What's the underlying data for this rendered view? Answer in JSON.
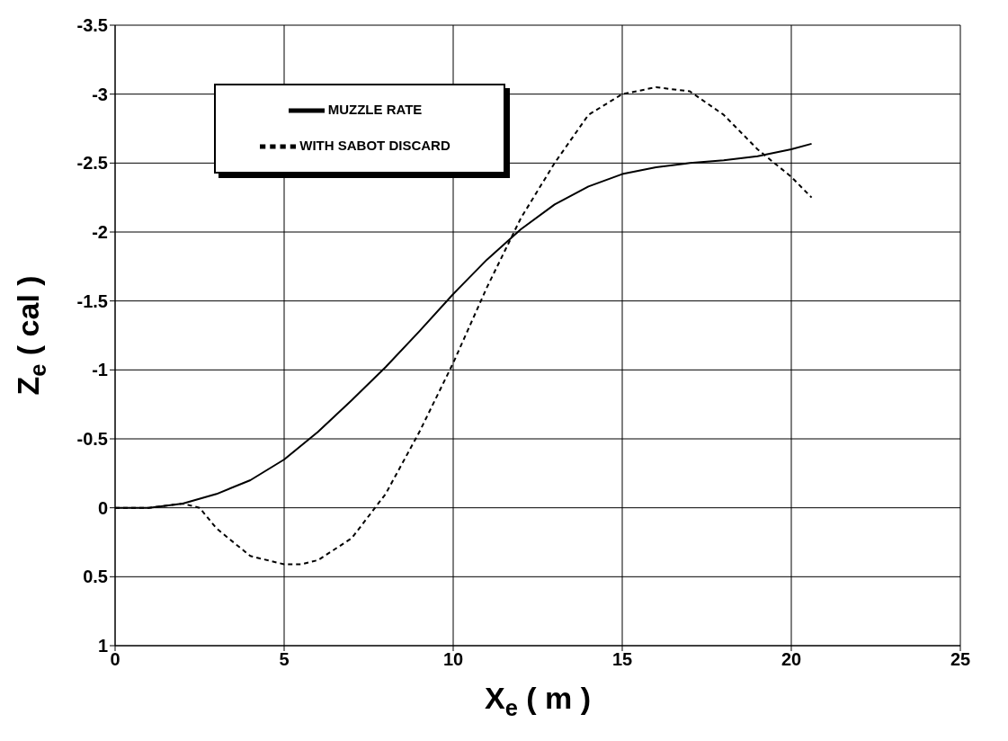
{
  "chart_data": {
    "type": "line",
    "xlabel": "X$_{e}$ ( m )",
    "ylabel": "Z$_{e}$ ( cal )",
    "xlim": [
      0,
      25
    ],
    "xticks": [
      0,
      5,
      10,
      15,
      20,
      25
    ],
    "ylim": [
      1,
      -3.5
    ],
    "yticks": [
      -3.5,
      -3,
      -2.5,
      -2,
      -1.5,
      -1,
      -0.5,
      0,
      0.5,
      1
    ],
    "grid": true,
    "legend": "top left",
    "marker": "none",
    "series": [
      {
        "name": "MUZZLE RATE",
        "color": "#000000",
        "line_style": "solid",
        "x": [
          0,
          1,
          2,
          3,
          4,
          5,
          6,
          7,
          8,
          9,
          10,
          11,
          12,
          13,
          14,
          15,
          16,
          17,
          18,
          19,
          20,
          20.6
        ],
        "values": [
          0,
          0,
          -0.03,
          -0.1,
          -0.2,
          -0.35,
          -0.55,
          -0.78,
          -1.02,
          -1.28,
          -1.55,
          -1.8,
          -2.02,
          -2.2,
          -2.33,
          -2.42,
          -2.47,
          -2.5,
          -2.52,
          -2.55,
          -2.6,
          -2.64
        ]
      },
      {
        "name": "WITH SABOT DISCARD",
        "color": "#000000",
        "line_style": "dashed",
        "x": [
          0,
          1,
          2,
          2.5,
          3,
          4,
          5,
          5.5,
          6,
          7,
          8,
          9,
          10,
          11,
          12,
          13,
          14,
          15,
          16,
          17,
          18,
          19,
          20,
          20.6
        ],
        "values": [
          0,
          0,
          -0.03,
          0,
          0.15,
          0.35,
          0.41,
          0.41,
          0.38,
          0.22,
          -0.1,
          -0.55,
          -1.05,
          -1.6,
          -2.1,
          -2.5,
          -2.85,
          -3.0,
          -3.05,
          -3.02,
          -2.85,
          -2.6,
          -2.4,
          -2.25
        ]
      }
    ]
  }
}
